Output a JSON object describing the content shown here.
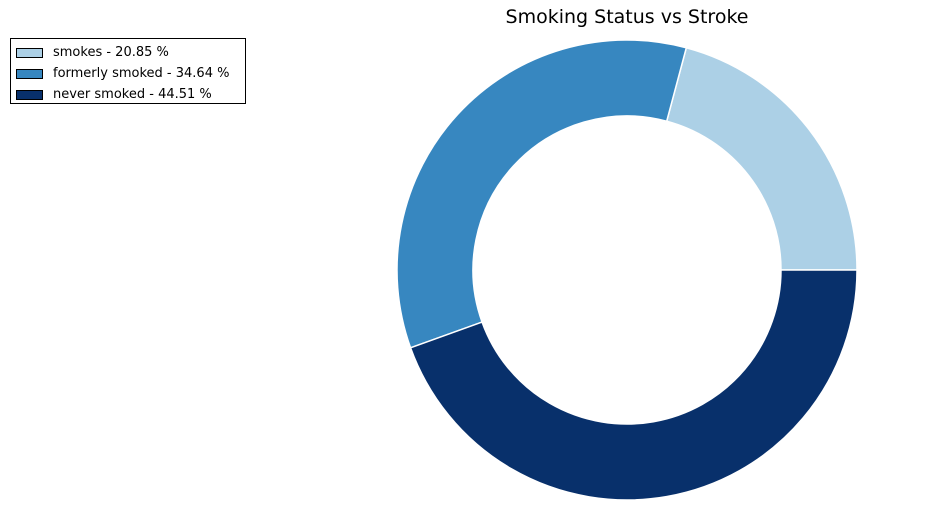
{
  "chart_data": {
    "type": "pie",
    "variant": "donut",
    "title": "Smoking Status vs Stroke",
    "categories": [
      "smokes",
      "formerly smoked",
      "never smoked"
    ],
    "values": [
      20.85,
      34.64,
      44.51
    ],
    "legend_labels": [
      "smokes - 20.85 %",
      "formerly smoked - 34.64 %",
      "never smoked - 44.51 %"
    ],
    "colors": [
      "#acd0e6",
      "#3787c0",
      "#08306b"
    ],
    "start_angle_deg": 0,
    "direction": "counterclockwise",
    "legend_position": "top-left"
  }
}
